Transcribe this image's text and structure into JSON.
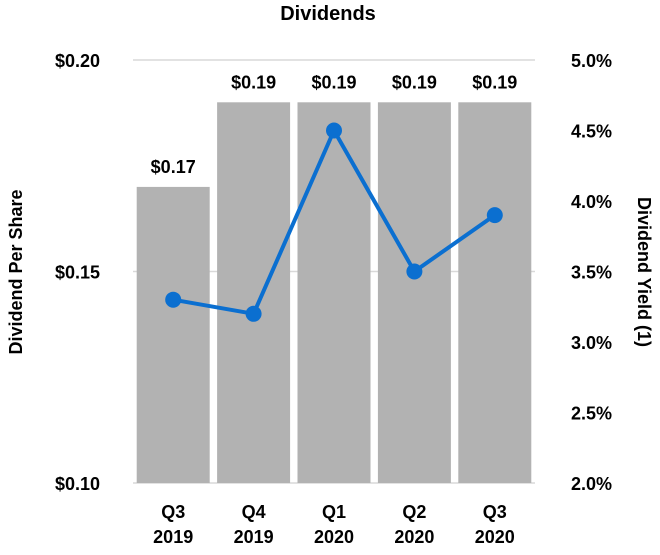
{
  "chart_data": {
    "type": "bar+line",
    "title": "Dividends",
    "categories": [
      [
        "Q3",
        "2019"
      ],
      [
        "Q4",
        "2019"
      ],
      [
        "Q1",
        "2020"
      ],
      [
        "Q2",
        "2020"
      ],
      [
        "Q3",
        "2020"
      ]
    ],
    "series": [
      {
        "type": "bar",
        "axis": "left",
        "values": [
          0.17,
          0.19,
          0.19,
          0.19,
          0.19
        ],
        "labels": [
          "$0.17",
          "$0.19",
          "$0.19",
          "$0.19",
          "$0.19"
        ],
        "color": "#b2b2b2"
      },
      {
        "type": "line",
        "axis": "right",
        "values": [
          3.3,
          3.2,
          4.5,
          3.5,
          3.9
        ],
        "color": "#0b6fd0"
      }
    ],
    "ylabel": "Dividend Per Share",
    "y2label": "Dividend Yield (1)",
    "ylim": [
      0.1,
      0.2
    ],
    "yticks": [
      "$0.10",
      "$0.15",
      "$0.20"
    ],
    "y2lim": [
      2.0,
      5.0
    ],
    "y2ticks": [
      "2.0%",
      "2.5%",
      "3.0%",
      "3.5%",
      "4.0%",
      "4.5%",
      "5.0%"
    ],
    "grid": true
  }
}
